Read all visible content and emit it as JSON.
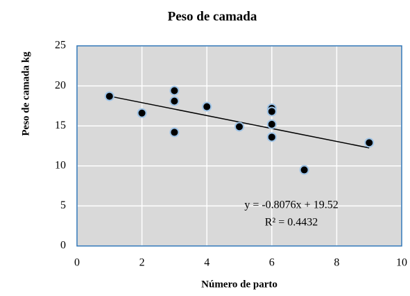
{
  "chart_data": {
    "type": "scatter",
    "title": "Peso de camada",
    "x_label": "Número de parto",
    "y_label": "Peso de camada kg",
    "series": [
      {
        "x": [
          1,
          2,
          3,
          3,
          3,
          4,
          5,
          6,
          6,
          6,
          6,
          7,
          9
        ],
        "values": [
          18.7,
          16.6,
          19.4,
          18.1,
          14.2,
          17.4,
          14.9,
          17.2,
          16.8,
          15.2,
          13.6,
          9.5,
          12.9
        ],
        "color": "#000000",
        "edge_color": "#9dc3e6"
      }
    ],
    "trendline": {
      "slope": -0.8076,
      "intercept": 19.52,
      "equation": "y = -0.8076x + 19.52",
      "r_squared": "R² = 0.4432",
      "color": "#000000"
    },
    "xlim": [
      0,
      10
    ],
    "xticks": [
      0,
      2,
      4,
      6,
      8,
      10
    ],
    "ylim": [
      0,
      25
    ],
    "yticks": [
      0,
      5,
      10,
      15,
      20,
      25
    ],
    "grid": true,
    "plot_background": "#d9d9d9",
    "plot_border": "#2e75b6"
  }
}
